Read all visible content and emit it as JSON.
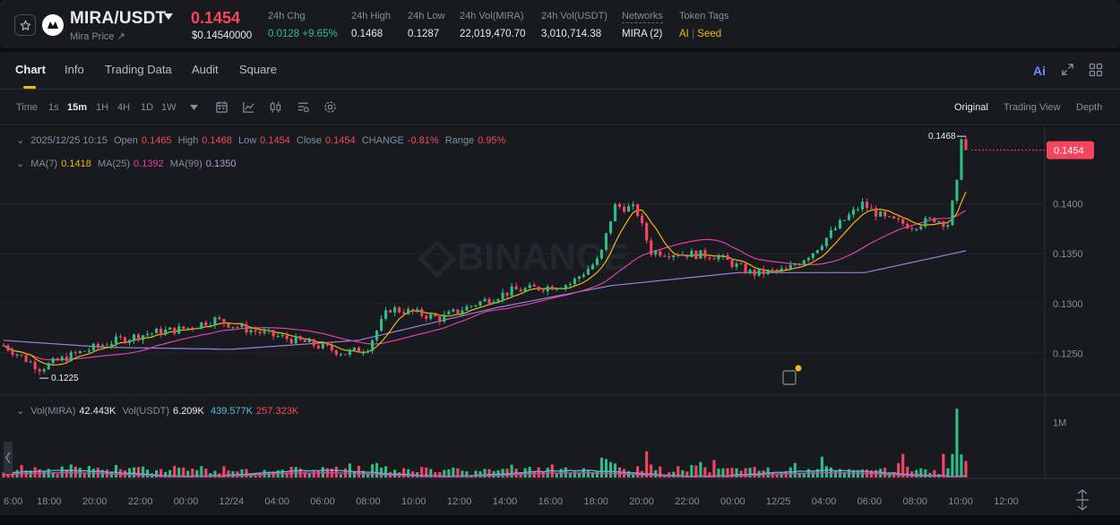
{
  "ticker": {
    "pair": "MIRA/USDT",
    "sub_label": "Mira Price",
    "last_price": "0.1454",
    "last_price_usd": "$0.14540000",
    "change_label": "24h Chg",
    "change_value": "0.0128 +9.65%",
    "high_label": "24h High",
    "high_value": "0.1468",
    "low_label": "24h Low",
    "low_value": "0.1287",
    "vol_base_label": "24h Vol(MIRA)",
    "vol_base_value": "22,019,470.70",
    "vol_quote_label": "24h Vol(USDT)",
    "vol_quote_value": "3,010,714.38",
    "networks_label": "Networks",
    "networks_value": "MIRA (2)",
    "tags_label": "Token Tags",
    "tag_ai": "AI",
    "tag_sep": "|",
    "tag_seed": "Seed"
  },
  "tabs": [
    {
      "label": "Chart",
      "active": true
    },
    {
      "label": "Info",
      "active": false
    },
    {
      "label": "Trading Data",
      "active": false
    },
    {
      "label": "Audit",
      "active": false
    },
    {
      "label": "Square",
      "active": false
    }
  ],
  "tab_icons": {
    "ai": "Ai",
    "expand": "expand-icon",
    "layout": "layout-grid-icon"
  },
  "toolbar": {
    "timeframes": [
      {
        "label": "Time",
        "active": false
      },
      {
        "label": "1s",
        "active": false
      },
      {
        "label": "15m",
        "active": true
      },
      {
        "label": "1H",
        "active": false
      },
      {
        "label": "4H",
        "active": false
      },
      {
        "label": "1D",
        "active": false
      },
      {
        "label": "1W",
        "active": false
      }
    ],
    "views": [
      {
        "label": "Original",
        "active": true
      },
      {
        "label": "Trading View",
        "active": false
      },
      {
        "label": "Depth",
        "active": false
      }
    ]
  },
  "ohlc": {
    "datetime": "2025/12/25 10:15",
    "open_label": "Open",
    "open": "0.1465",
    "high_label": "High",
    "high": "0.1468",
    "low_label": "Low",
    "low": "0.1454",
    "close_label": "Close",
    "close": "0.1454",
    "change_label": "CHANGE",
    "change": "-0.81%",
    "range_label": "Range",
    "range": "0.95%"
  },
  "ma": {
    "ma7_label": "MA(7)",
    "ma7": "0.1418",
    "ma25_label": "MA(25)",
    "ma25": "0.1392",
    "ma99_label": "MA(99)",
    "ma99": "0.1350"
  },
  "volume": {
    "base_label": "Vol(MIRA)",
    "base": "42.443K",
    "quote_label": "Vol(USDT)",
    "quote": "6.209K",
    "ma_a": "439.577K",
    "ma_b": "257.323K"
  },
  "chart_data": {
    "type": "candlestick",
    "y_ticks": [
      "0.1400",
      "0.1350",
      "0.1300",
      "0.1250"
    ],
    "ylim": [
      0.1208,
      0.1478
    ],
    "x_ticks": [
      "6:00",
      "18:00",
      "20:00",
      "22:00",
      "00:00",
      "12/24",
      "04:00",
      "06:00",
      "08:00",
      "10:00",
      "12:00",
      "14:00",
      "16:00",
      "18:00",
      "20:00",
      "22:00",
      "00:00",
      "12/25",
      "04:00",
      "06:00",
      "08:00",
      "10:00",
      "12:00"
    ],
    "current_price_label": "0.1454",
    "current_price": 0.1454,
    "max_marker": "0.1468",
    "max_value": 0.1468,
    "min_marker": "0.1225",
    "min_value": 0.1225,
    "volume_tick": "1M",
    "volume_max": 1400000,
    "colors": {
      "up": "#2ebd85",
      "down": "#f6465d",
      "ma7": "#f0b90b",
      "ma25": "#e040a0",
      "ma99": "#9c7fe0",
      "vol_ma_a": "#4fc3d8",
      "vol_ma_b": "#e040a0"
    },
    "ma99_anchor": [
      [
        0,
        0.1263
      ],
      [
        40,
        0.1256
      ],
      [
        90,
        0.1254
      ],
      [
        140,
        0.1263
      ],
      [
        195,
        0.1296
      ],
      [
        240,
        0.1318
      ],
      [
        290,
        0.1331
      ],
      [
        340,
        0.1331
      ],
      [
        380,
        0.1353
      ]
    ],
    "ma99_anchor_index_max": 380,
    "candle_count": 215,
    "vol_ma_a_level": 0.06,
    "vol_ma_b_level": 0.04
  }
}
